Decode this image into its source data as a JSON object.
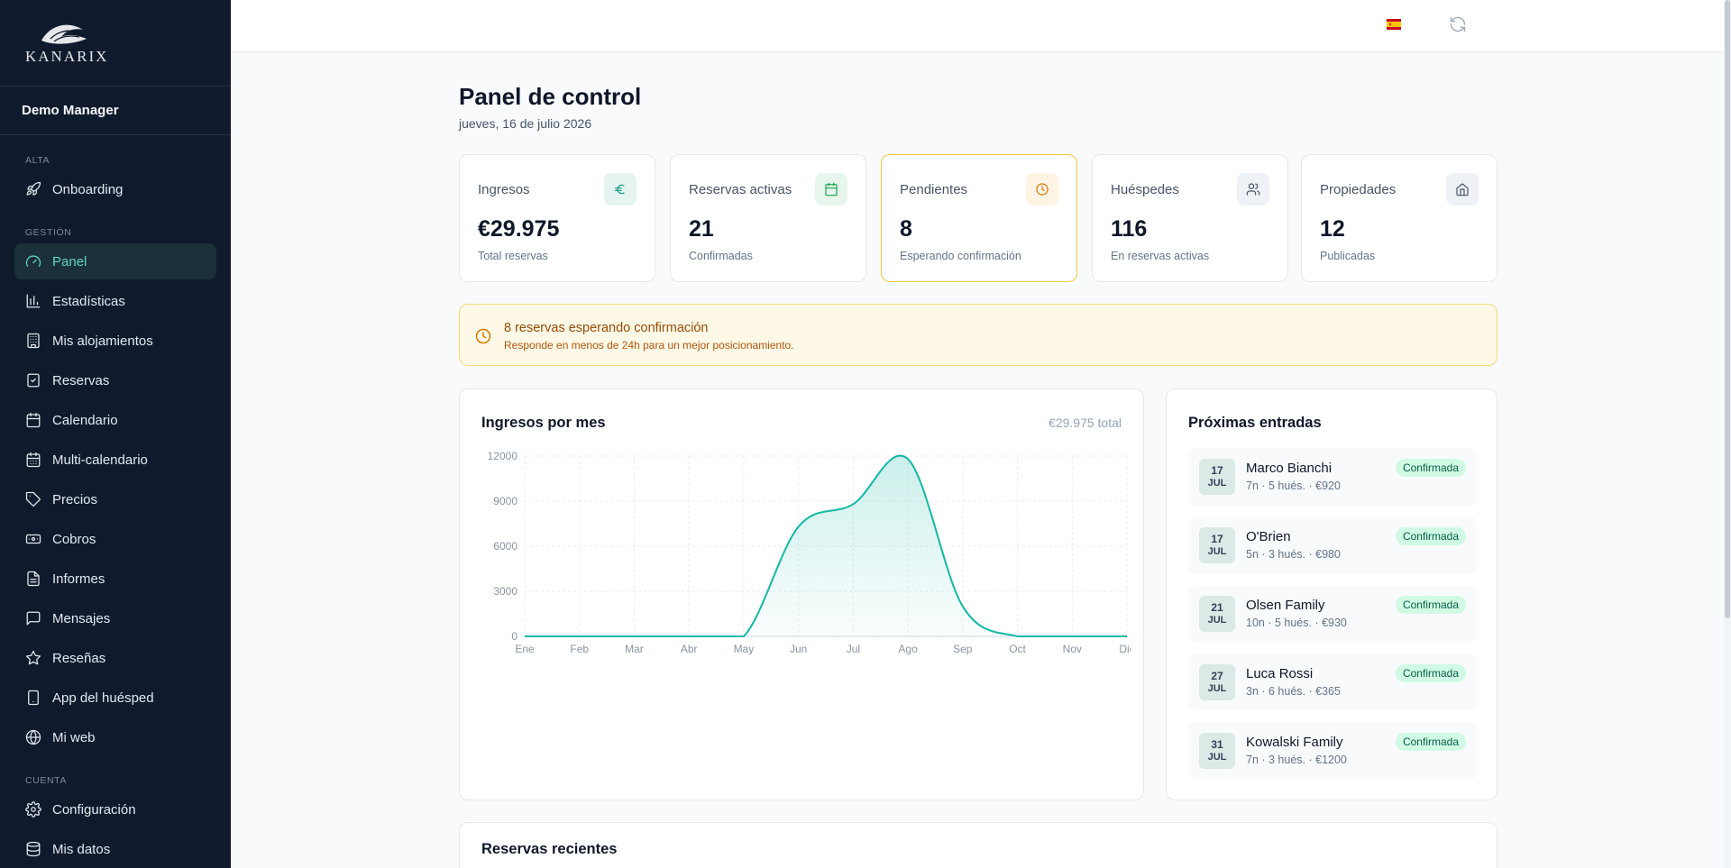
{
  "sidebar": {
    "logo_text": "KANARIX",
    "user_name": "Demo Manager",
    "sections": [
      {
        "label": "ALTA",
        "items": [
          {
            "label": "Onboarding",
            "icon": "rocket-icon"
          }
        ]
      },
      {
        "label": "GESTIÓN",
        "items": [
          {
            "label": "Panel",
            "icon": "gauge-icon",
            "active": true
          },
          {
            "label": "Estadísticas",
            "icon": "bar-chart-icon"
          },
          {
            "label": "Mis alojamientos",
            "icon": "building-icon"
          },
          {
            "label": "Reservas",
            "icon": "clipboard-check-icon"
          },
          {
            "label": "Calendario",
            "icon": "calendar-icon"
          },
          {
            "label": "Multi-calendario",
            "icon": "calendar-grid-icon"
          },
          {
            "label": "Precios",
            "icon": "tag-icon"
          },
          {
            "label": "Cobros",
            "icon": "banknote-icon"
          },
          {
            "label": "Informes",
            "icon": "file-text-icon"
          },
          {
            "label": "Mensajes",
            "icon": "message-square-icon"
          },
          {
            "label": "Reseñas",
            "icon": "star-icon"
          },
          {
            "label": "App del huésped",
            "icon": "smartphone-icon"
          },
          {
            "label": "Mi web",
            "icon": "globe-icon"
          }
        ]
      },
      {
        "label": "CUENTA",
        "items": [
          {
            "label": "Configuración",
            "icon": "gear-icon"
          },
          {
            "label": "Mis datos",
            "icon": "database-icon"
          }
        ]
      }
    ]
  },
  "topbar": {
    "flag_icon": "spain-flag-icon",
    "refresh_icon": "refresh-icon"
  },
  "page": {
    "title": "Panel de control",
    "date": "jueves, 16 de julio 2026"
  },
  "stats": [
    {
      "label": "Ingresos",
      "value": "€29.975",
      "sub": "Total reservas",
      "icon": "euro-icon",
      "color": "#0d9488",
      "bg": "#e6f4f1"
    },
    {
      "label": "Reservas activas",
      "value": "21",
      "sub": "Confirmadas",
      "icon": "calendar-icon",
      "color": "#16a34a",
      "bg": "#e7f6ec"
    },
    {
      "label": "Pendientes",
      "value": "8",
      "sub": "Esperando confirmación",
      "icon": "clock-icon",
      "color": "#d97706",
      "bg": "#fdf4e3"
    },
    {
      "label": "Huéspedes",
      "value": "116",
      "sub": "En reservas activas",
      "icon": "users-icon",
      "color": "#475569",
      "bg": "#eef1f5"
    },
    {
      "label": "Propiedades",
      "value": "12",
      "sub": "Publicadas",
      "icon": "home-icon",
      "color": "#475569",
      "bg": "#eef1f5"
    }
  ],
  "alert": {
    "title": "8 reservas esperando confirmación",
    "sub": "Responde en menos de 24h para un mejor posicionamiento."
  },
  "revenue": {
    "title": "Ingresos por mes",
    "total": "€29.975 total",
    "chart_data": {
      "type": "area",
      "categories": [
        "Ene",
        "Feb",
        "Mar",
        "Abr",
        "May",
        "Jun",
        "Jul",
        "Ago",
        "Sep",
        "Oct",
        "Nov",
        "Dic"
      ],
      "values": [
        0,
        0,
        0,
        0,
        0,
        7300,
        8800,
        11800,
        2000,
        0,
        0,
        0
      ],
      "y_ticks": [
        "0",
        "3000",
        "6000",
        "9000",
        "12000"
      ],
      "ylim": [
        0,
        12000
      ],
      "color": "#14b8a6",
      "grid": true
    }
  },
  "arrivals": {
    "title": "Próximas entradas",
    "items": [
      {
        "day": "17",
        "month": "JUL",
        "name": "Marco Bianchi",
        "meta": "7n · 5 hués. · €920",
        "status": "Confirmada"
      },
      {
        "day": "17",
        "month": "JUL",
        "name": "O'Brien",
        "meta": "5n · 3 hués. · €980",
        "status": "Confirmada"
      },
      {
        "day": "21",
        "month": "JUL",
        "name": "Olsen Family",
        "meta": "10n · 5 hués. · €930",
        "status": "Confirmada"
      },
      {
        "day": "27",
        "month": "JUL",
        "name": "Luca Rossi",
        "meta": "3n · 6 hués. · €365",
        "status": "Confirmada"
      },
      {
        "day": "31",
        "month": "JUL",
        "name": "Kowalski Family",
        "meta": "7n · 3 hués. · €1200",
        "status": "Confirmada"
      }
    ]
  },
  "recent": {
    "title": "Reservas recientes"
  }
}
